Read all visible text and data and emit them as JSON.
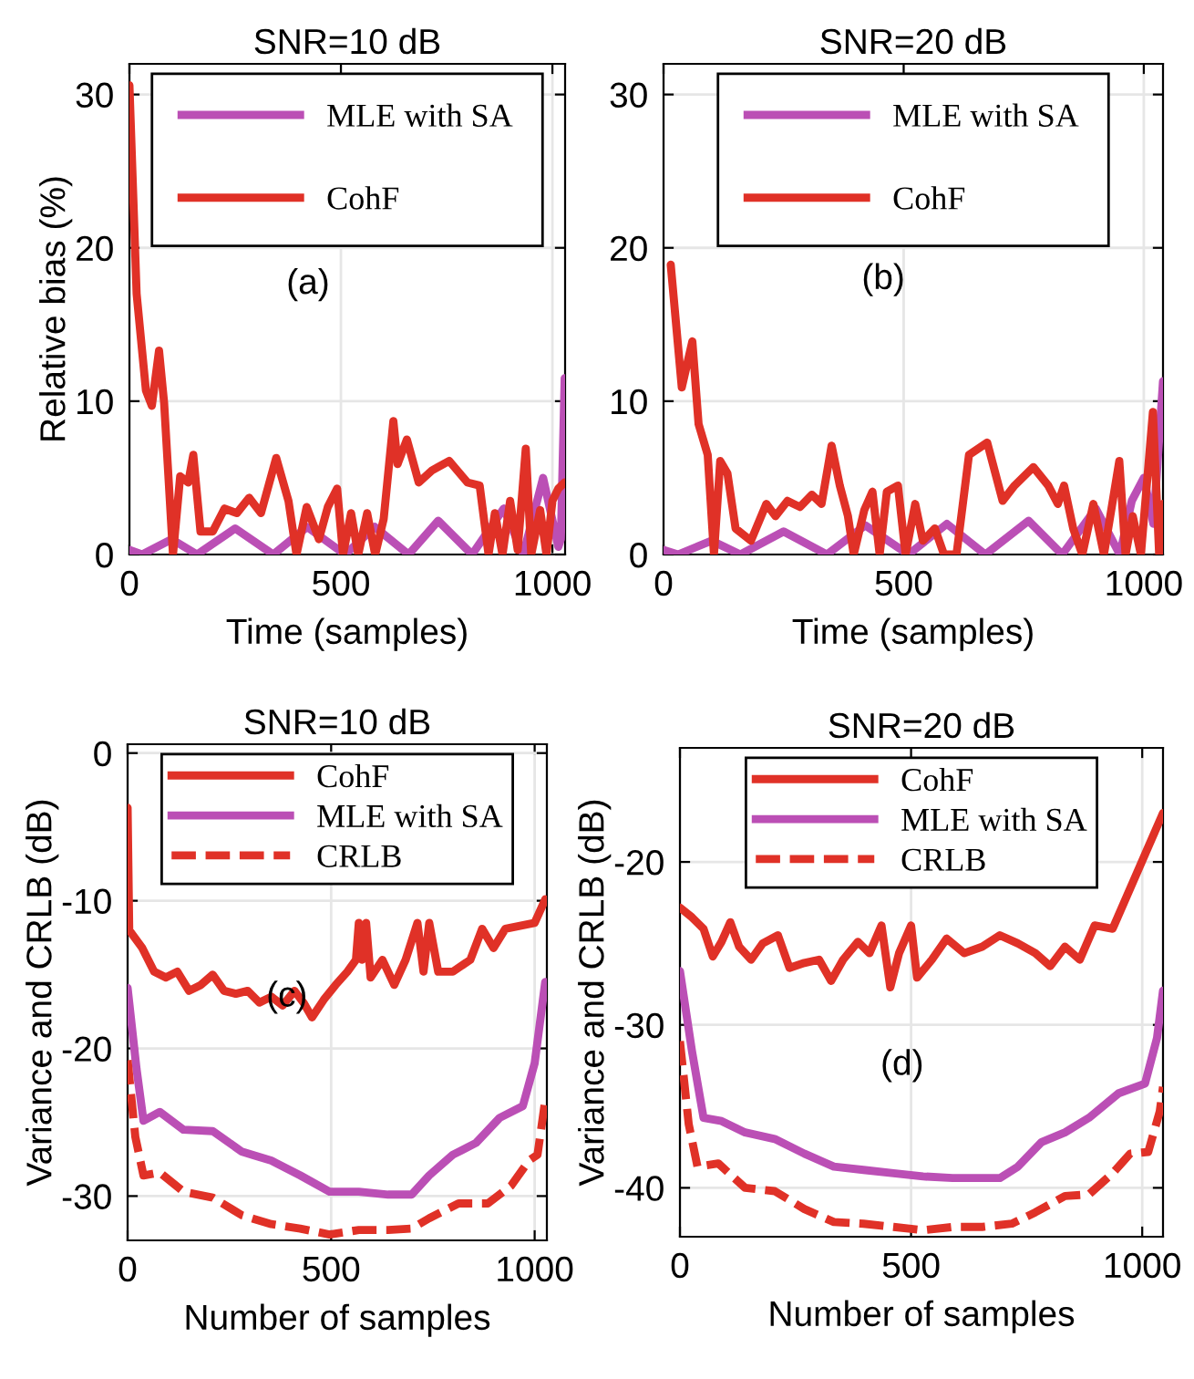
{
  "chart_data": [
    {
      "type": "line",
      "title": "SNR=10 dB",
      "xlabel": "Time (samples)",
      "ylabel": "Relative bias (%)",
      "annotations": [
        "(a)"
      ],
      "xlim": [
        0,
        1030
      ],
      "ylim": [
        0,
        32
      ],
      "xticks": [
        0,
        500,
        1000
      ],
      "yticks": [
        0,
        10,
        20,
        30
      ],
      "grid": true,
      "legend": "top",
      "series": [
        {
          "name": "MLE with SA",
          "color": "#bb4fb5",
          "line_style": "solid",
          "x": [
            0,
            30,
            100,
            160,
            250,
            340,
            420,
            510,
            580,
            660,
            730,
            810,
            885,
            931,
            978,
            1014,
            1020,
            1029
          ],
          "values": [
            0.3,
            0,
            1,
            0,
            1.7,
            0,
            1.8,
            0,
            1.8,
            0,
            2.2,
            0,
            3,
            0,
            5,
            0.5,
            1,
            11.5
          ]
        },
        {
          "name": "CohF",
          "color": "#e03127",
          "line_style": "solid",
          "x": [
            0,
            17,
            39,
            53,
            70,
            82,
            103,
            120,
            139,
            151,
            168,
            197,
            225,
            254,
            283,
            311,
            347,
            376,
            395,
            419,
            448,
            469,
            491,
            505,
            524,
            541,
            562,
            581,
            601,
            624,
            634,
            656,
            684,
            716,
            756,
            799,
            828,
            849,
            864,
            882,
            900,
            918,
            937,
            950,
            971,
            986,
            1000,
            1014,
            1029
          ],
          "values": [
            30.6,
            17,
            10.7,
            9.7,
            13.3,
            9.9,
            0,
            5.1,
            4.7,
            6.5,
            1.5,
            1.5,
            3,
            2.7,
            3.7,
            2.7,
            6.3,
            3.5,
            0,
            3.1,
            1,
            3.1,
            4.3,
            0,
            2.7,
            0,
            2.7,
            0,
            2.3,
            8.7,
            5.9,
            7.5,
            4.7,
            5.5,
            6.1,
            4.7,
            4.5,
            0,
            2.7,
            0,
            3.5,
            0.3,
            6.9,
            0,
            2.9,
            0,
            3.5,
            4.3,
            4.7
          ]
        }
      ]
    },
    {
      "type": "line",
      "title": "SNR=20 dB",
      "xlabel": "Time (samples)",
      "annotations": [
        "(b)"
      ],
      "xlim": [
        0,
        1040
      ],
      "ylim": [
        0,
        32
      ],
      "xticks": [
        0,
        500,
        1000
      ],
      "yticks": [
        0,
        10,
        20,
        30
      ],
      "grid": true,
      "legend": "top",
      "series": [
        {
          "name": "MLE with SA",
          "color": "#bb4fb5",
          "line_style": "solid",
          "x": [
            0,
            30,
            100,
            160,
            250,
            340,
            420,
            510,
            590,
            670,
            760,
            830,
            900,
            950,
            975,
            1000,
            1020,
            1040
          ],
          "values": [
            0.3,
            0,
            0.9,
            0,
            1.5,
            0,
            1.9,
            0,
            2,
            0,
            2.2,
            0,
            3,
            0,
            3.5,
            5,
            2,
            11.3
          ]
        },
        {
          "name": "CohF",
          "color": "#e03127",
          "line_style": "solid",
          "x": [
            15,
            38,
            60,
            73,
            92,
            105,
            118,
            133,
            150,
            182,
            214,
            233,
            258,
            284,
            309,
            329,
            350,
            367,
            384,
            396,
            418,
            435,
            450,
            465,
            488,
            504,
            524,
            540,
            565,
            584,
            610,
            636,
            674,
            706,
            731,
            770,
            801,
            821,
            834,
            853,
            872,
            895,
            917,
            949,
            962,
            977,
            994,
            1019,
            1032,
            1040
          ],
          "values": [
            18.9,
            10.9,
            13.9,
            8.5,
            6.5,
            0,
            6.1,
            5.3,
            1.7,
            0.9,
            3.3,
            2.5,
            3.5,
            3.1,
            3.9,
            3.3,
            7.1,
            4.5,
            2.5,
            0,
            2.9,
            4.1,
            0,
            4.1,
            4.5,
            0,
            3.3,
            0.9,
            1.7,
            0,
            0,
            6.5,
            7.3,
            3.5,
            4.5,
            5.7,
            4.5,
            3.3,
            4.5,
            1.7,
            0,
            3.3,
            0,
            6.1,
            0,
            2.5,
            0,
            9.3,
            0,
            3.3
          ]
        }
      ]
    },
    {
      "type": "line",
      "title": "SNR=10 dB",
      "xlabel": "Number of samples",
      "ylabel": "Variance and CRLB (dB)",
      "annotations": [
        "(c)"
      ],
      "xlim": [
        0,
        1030
      ],
      "ylim": [
        -33,
        0.6
      ],
      "xticks": [
        0,
        500,
        1000
      ],
      "yticks": [
        0,
        -10,
        -20,
        -30
      ],
      "grid": true,
      "legend": "top",
      "series": [
        {
          "name": "CohF",
          "color": "#e03127",
          "line_style": "solid",
          "x": [
            0,
            4,
            36,
            65,
            94,
            122,
            151,
            180,
            209,
            237,
            266,
            295,
            324,
            353,
            381,
            410,
            432,
            453,
            482,
            511,
            540,
            561,
            568,
            576,
            586,
            597,
            626,
            655,
            683,
            712,
            727,
            741,
            763,
            799,
            842,
            871,
            899,
            928,
            1000,
            1026
          ],
          "values": [
            -3.7,
            -12,
            -13.2,
            -14.8,
            -15.2,
            -14.8,
            -16.1,
            -15.7,
            -15,
            -16.1,
            -16.3,
            -16.1,
            -16.9,
            -16.5,
            -17.1,
            -16.1,
            -16.9,
            -17.9,
            -16.7,
            -15.7,
            -14.8,
            -14,
            -11.5,
            -14,
            -11.5,
            -15.2,
            -14,
            -15.7,
            -14,
            -11.5,
            -14.8,
            -11.5,
            -14.8,
            -14.8,
            -14,
            -11.9,
            -13.2,
            -11.9,
            -11.5,
            -9.9
          ]
        },
        {
          "name": "MLE with SA",
          "color": "#bb4fb5",
          "line_style": "solid",
          "x": [
            0,
            22,
            39,
            79,
            137,
            209,
            281,
            353,
            424,
            496,
            568,
            640,
            698,
            741,
            799,
            856,
            914,
            971,
            1000,
            1026
          ],
          "values": [
            -15.9,
            -21.4,
            -24.9,
            -24.3,
            -25.5,
            -25.6,
            -27,
            -27.6,
            -28.6,
            -29.7,
            -29.7,
            -29.9,
            -29.9,
            -28.6,
            -27.2,
            -26.4,
            -24.7,
            -23.9,
            -21,
            -15.5
          ]
        },
        {
          "name": "CRLB",
          "color": "#e03127",
          "line_style": "dashed",
          "x": [
            0,
            19,
            39,
            79,
            137,
            209,
            281,
            353,
            424,
            496,
            568,
            640,
            698,
            741,
            813,
            885,
            942,
            986,
            1007,
            1026
          ],
          "values": [
            -20.8,
            -26,
            -28.6,
            -28.4,
            -29.7,
            -30.1,
            -31.3,
            -31.9,
            -32.2,
            -32.6,
            -32.3,
            -32.3,
            -32.2,
            -31.5,
            -30.5,
            -30.5,
            -29.3,
            -27.6,
            -27.2,
            -23.5
          ]
        }
      ]
    },
    {
      "type": "line",
      "title": "SNR=20 dB",
      "xlabel": "Number of samples",
      "ylabel": "Variance and CRLB (dB)",
      "annotations": [
        "(d)"
      ],
      "xlim": [
        0,
        1045
      ],
      "ylim": [
        -43,
        -13
      ],
      "xticks": [
        0,
        500,
        1000
      ],
      "yticks": [
        -20,
        -30,
        -40
      ],
      "grid": true,
      "legend": "top",
      "series": [
        {
          "name": "CohF",
          "color": "#e03127",
          "line_style": "solid",
          "x": [
            0,
            26,
            51,
            71,
            90,
            109,
            128,
            154,
            179,
            212,
            237,
            269,
            301,
            327,
            353,
            385,
            410,
            436,
            455,
            474,
            500,
            513,
            545,
            577,
            615,
            654,
            692,
            731,
            769,
            801,
            833,
            865,
            897,
            936,
            1045
          ],
          "values": [
            -22.8,
            -23.4,
            -24.1,
            -25.8,
            -24.9,
            -23.7,
            -25.2,
            -26,
            -25,
            -24.5,
            -26.5,
            -26.2,
            -26,
            -27.3,
            -26,
            -24.9,
            -25.6,
            -23.9,
            -27.7,
            -25.6,
            -23.9,
            -27.1,
            -26,
            -24.7,
            -25.6,
            -25.2,
            -24.5,
            -25,
            -25.6,
            -26.4,
            -25.2,
            -26,
            -23.9,
            -24.1,
            -17
          ]
        },
        {
          "name": "MLE with SA",
          "color": "#bb4fb5",
          "line_style": "solid",
          "x": [
            0,
            26,
            51,
            90,
            141,
            205,
            269,
            333,
            397,
            462,
            526,
            590,
            654,
            692,
            731,
            782,
            833,
            885,
            949,
            1006,
            1032,
            1045
          ],
          "values": [
            -26.7,
            -31.6,
            -35.7,
            -35.9,
            -36.6,
            -37,
            -37.9,
            -38.7,
            -38.9,
            -39.1,
            -39.3,
            -39.4,
            -39.4,
            -39.4,
            -38.7,
            -37.2,
            -36.6,
            -35.7,
            -34.2,
            -33.6,
            -30.8,
            -27.9
          ]
        },
        {
          "name": "CRLB",
          "color": "#e03127",
          "line_style": "dashed",
          "x": [
            0,
            19,
            38,
            83,
            141,
            205,
            269,
            333,
            397,
            462,
            526,
            590,
            654,
            718,
            769,
            833,
            885,
            936,
            974,
            1013,
            1038,
            1045
          ],
          "values": [
            -31,
            -36.1,
            -38.7,
            -38.5,
            -40,
            -40.2,
            -41.3,
            -42.1,
            -42.2,
            -42.4,
            -42.6,
            -42.4,
            -42.4,
            -42.2,
            -41.5,
            -40.5,
            -40.4,
            -39.1,
            -37.9,
            -37.8,
            -35.3,
            -33.8
          ]
        }
      ]
    }
  ]
}
